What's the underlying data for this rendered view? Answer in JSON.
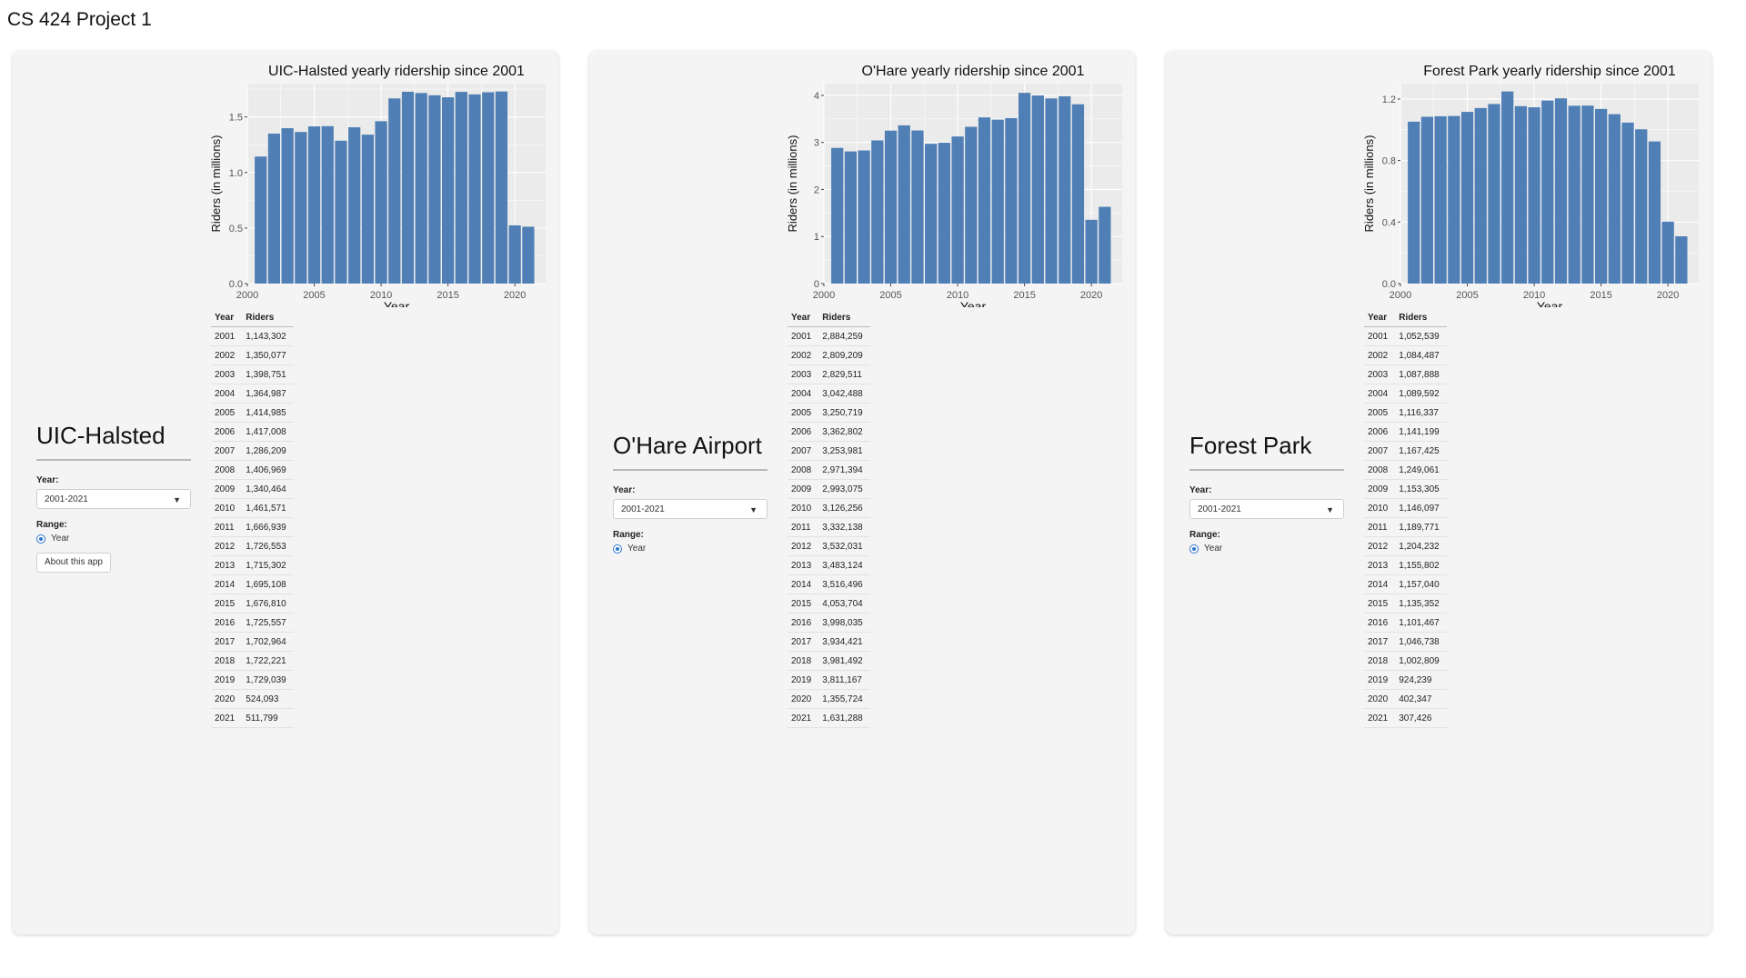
{
  "app_title": "CS 424 Project 1",
  "panels": [
    {
      "station": "UIC-Halsted",
      "year_label": "Year:",
      "year_value": "2001-2021",
      "range_label": "Range:",
      "range_option": "Year",
      "about_button": "About this app",
      "table_headers": [
        "Year",
        "Riders"
      ],
      "table_rows": [
        [
          "2001",
          "1,143,302"
        ],
        [
          "2002",
          "1,350,077"
        ],
        [
          "2003",
          "1,398,751"
        ],
        [
          "2004",
          "1,364,987"
        ],
        [
          "2005",
          "1,414,985"
        ],
        [
          "2006",
          "1,417,008"
        ],
        [
          "2007",
          "1,286,209"
        ],
        [
          "2008",
          "1,406,969"
        ],
        [
          "2009",
          "1,340,464"
        ],
        [
          "2010",
          "1,461,571"
        ],
        [
          "2011",
          "1,666,939"
        ],
        [
          "2012",
          "1,726,553"
        ],
        [
          "2013",
          "1,715,302"
        ],
        [
          "2014",
          "1,695,108"
        ],
        [
          "2015",
          "1,676,810"
        ],
        [
          "2016",
          "1,725,557"
        ],
        [
          "2017",
          "1,702,964"
        ],
        [
          "2018",
          "1,722,221"
        ],
        [
          "2019",
          "1,729,039"
        ],
        [
          "2020",
          "524,093"
        ],
        [
          "2021",
          "511,799"
        ]
      ]
    },
    {
      "station": "O'Hare Airport",
      "year_label": "Year:",
      "year_value": "2001-2021",
      "range_label": "Range:",
      "range_option": "Year",
      "table_headers": [
        "Year",
        "Riders"
      ],
      "table_rows": [
        [
          "2001",
          "2,884,259"
        ],
        [
          "2002",
          "2,809,209"
        ],
        [
          "2003",
          "2,829,511"
        ],
        [
          "2004",
          "3,042,488"
        ],
        [
          "2005",
          "3,250,719"
        ],
        [
          "2006",
          "3,362,802"
        ],
        [
          "2007",
          "3,253,981"
        ],
        [
          "2008",
          "2,971,394"
        ],
        [
          "2009",
          "2,993,075"
        ],
        [
          "2010",
          "3,126,256"
        ],
        [
          "2011",
          "3,332,138"
        ],
        [
          "2012",
          "3,532,031"
        ],
        [
          "2013",
          "3,483,124"
        ],
        [
          "2014",
          "3,516,496"
        ],
        [
          "2015",
          "4,053,704"
        ],
        [
          "2016",
          "3,998,035"
        ],
        [
          "2017",
          "3,934,421"
        ],
        [
          "2018",
          "3,981,492"
        ],
        [
          "2019",
          "3,811,167"
        ],
        [
          "2020",
          "1,355,724"
        ],
        [
          "2021",
          "1,631,288"
        ]
      ]
    },
    {
      "station": "Forest Park",
      "year_label": "Year:",
      "year_value": "2001-2021",
      "range_label": "Range:",
      "range_option": "Year",
      "table_headers": [
        "Year",
        "Riders"
      ],
      "table_rows": [
        [
          "2001",
          "1,052,539"
        ],
        [
          "2002",
          "1,084,487"
        ],
        [
          "2003",
          "1,087,888"
        ],
        [
          "2004",
          "1,089,592"
        ],
        [
          "2005",
          "1,116,337"
        ],
        [
          "2006",
          "1,141,199"
        ],
        [
          "2007",
          "1,167,425"
        ],
        [
          "2008",
          "1,249,061"
        ],
        [
          "2009",
          "1,153,305"
        ],
        [
          "2010",
          "1,146,097"
        ],
        [
          "2011",
          "1,189,771"
        ],
        [
          "2012",
          "1,204,232"
        ],
        [
          "2013",
          "1,155,802"
        ],
        [
          "2014",
          "1,157,040"
        ],
        [
          "2015",
          "1,135,352"
        ],
        [
          "2016",
          "1,101,467"
        ],
        [
          "2017",
          "1,046,738"
        ],
        [
          "2018",
          "1,002,809"
        ],
        [
          "2019",
          "924,239"
        ],
        [
          "2020",
          "402,347"
        ],
        [
          "2021",
          "307,426"
        ]
      ]
    }
  ],
  "chart_data": [
    {
      "type": "bar",
      "title": "UIC-Halsted yearly ridership since 2001",
      "xlabel": "Year",
      "ylabel": "Riders (in millions)",
      "x": [
        2001,
        2002,
        2003,
        2004,
        2005,
        2006,
        2007,
        2008,
        2009,
        2010,
        2011,
        2012,
        2013,
        2014,
        2015,
        2016,
        2017,
        2018,
        2019,
        2020,
        2021
      ],
      "values": [
        1.143302,
        1.350077,
        1.398751,
        1.364987,
        1.414985,
        1.417008,
        1.286209,
        1.406969,
        1.340464,
        1.461571,
        1.666939,
        1.726553,
        1.715302,
        1.695108,
        1.67681,
        1.725557,
        1.702964,
        1.722221,
        1.729039,
        0.524093,
        0.511799
      ],
      "xlim": [
        2000,
        2022.3
      ],
      "ylim": [
        0,
        1.8
      ],
      "xticks": [
        2000,
        2005,
        2010,
        2015,
        2020
      ],
      "yticks": [
        0,
        0.5,
        1,
        1.5
      ],
      "ytick_labels": [
        "0.0",
        "0.5",
        "1.0",
        "1.5"
      ],
      "color": "#4f7fb5",
      "grid": true
    },
    {
      "type": "bar",
      "title": "O'Hare yearly ridership since 2001",
      "xlabel": "Year",
      "ylabel": "Riders (in millions)",
      "x": [
        2001,
        2002,
        2003,
        2004,
        2005,
        2006,
        2007,
        2008,
        2009,
        2010,
        2011,
        2012,
        2013,
        2014,
        2015,
        2016,
        2017,
        2018,
        2019,
        2020,
        2021
      ],
      "values": [
        2.884259,
        2.809209,
        2.829511,
        3.042488,
        3.250719,
        3.362802,
        3.253981,
        2.971394,
        2.993075,
        3.126256,
        3.332138,
        3.532031,
        3.483124,
        3.516496,
        4.053704,
        3.998035,
        3.934421,
        3.981492,
        3.811167,
        1.355724,
        1.631288
      ],
      "xlim": [
        2000,
        2022.3
      ],
      "ylim": [
        0,
        4.25
      ],
      "xticks": [
        2000,
        2005,
        2010,
        2015,
        2020
      ],
      "yticks": [
        0,
        1,
        2,
        3,
        4
      ],
      "ytick_labels": [
        "0",
        "1",
        "2",
        "3",
        "4"
      ],
      "color": "#4f7fb5",
      "grid": true
    },
    {
      "type": "bar",
      "title": "Forest Park yearly ridership since 2001",
      "xlabel": "Year",
      "ylabel": "Riders (in millions)",
      "x": [
        2001,
        2002,
        2003,
        2004,
        2005,
        2006,
        2007,
        2008,
        2009,
        2010,
        2011,
        2012,
        2013,
        2014,
        2015,
        2016,
        2017,
        2018,
        2019,
        2020,
        2021
      ],
      "values": [
        1.052539,
        1.084487,
        1.087888,
        1.089592,
        1.116337,
        1.141199,
        1.167425,
        1.249061,
        1.153305,
        1.146097,
        1.189771,
        1.204232,
        1.155802,
        1.15704,
        1.135352,
        1.101467,
        1.046738,
        1.002809,
        0.924239,
        0.402347,
        0.307426
      ],
      "xlim": [
        2000,
        2022.3
      ],
      "ylim": [
        0,
        1.3
      ],
      "xticks": [
        2000,
        2005,
        2010,
        2015,
        2020
      ],
      "yticks": [
        0,
        0.4,
        0.8,
        1.2
      ],
      "ytick_labels": [
        "0.0",
        "0.4",
        "0.8",
        "1.2"
      ],
      "color": "#4f7fb5",
      "grid": true
    }
  ]
}
